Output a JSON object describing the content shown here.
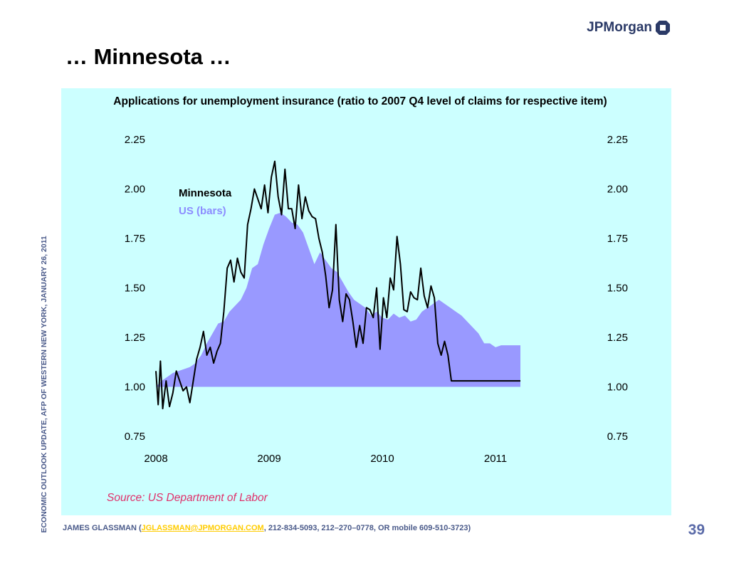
{
  "header": {
    "logo_text": "JPMorgan",
    "title": "… Minnesota …"
  },
  "side_label": "ECONOMIC OUTLOOK UPDATE, AFP OF WESTERN NEW YORK, JANUARY 26, 2011",
  "footer": {
    "author": "JAMES GLASSMAN (",
    "email": "JGLASSMAN@JPMORGAN.COM",
    "rest": ", 212-834-5093, 212–270–0778, OR mobile 609-510-3723)"
  },
  "page_number": "39",
  "source": "Source: US Department of Labor",
  "colors": {
    "panel": "#ccffff",
    "bars": "#9999ff",
    "line": "#000000",
    "source": "#e0306a"
  },
  "chart_data": {
    "type": "area",
    "title": "Applications for unemployment insurance (ratio to 2007 Q4 level of claims for respective item)",
    "ylim": [
      0.75,
      2.25
    ],
    "yticks_left": [
      "2.25",
      "2.00",
      "1.75",
      "1.50",
      "1.25",
      "1.00",
      "0.75"
    ],
    "yticks_right": [
      "2.25",
      "2.00",
      "1.75",
      "1.50",
      "1.25",
      "1.00",
      "0.75"
    ],
    "xlim": [
      2008.0,
      2011.22
    ],
    "xticks": [
      "2008",
      "2009",
      "2010",
      "2011"
    ],
    "legend": {
      "line": "Minnesota",
      "bars": "US (bars)"
    },
    "baseline": 1.0,
    "series": [
      {
        "name": "US (bars)",
        "kind": "area",
        "x": [
          2008.0,
          2008.05,
          2008.1,
          2008.15,
          2008.2,
          2008.25,
          2008.3,
          2008.35,
          2008.4,
          2008.45,
          2008.5,
          2008.55,
          2008.6,
          2008.65,
          2008.7,
          2008.75,
          2008.8,
          2008.85,
          2008.9,
          2008.95,
          2009.0,
          2009.05,
          2009.1,
          2009.15,
          2009.2,
          2009.25,
          2009.3,
          2009.35,
          2009.4,
          2009.45,
          2009.5,
          2009.55,
          2009.6,
          2009.65,
          2009.7,
          2009.75,
          2009.8,
          2009.85,
          2009.9,
          2009.95,
          2010.0,
          2010.05,
          2010.1,
          2010.15,
          2010.2,
          2010.25,
          2010.3,
          2010.35,
          2010.4,
          2010.45,
          2010.5,
          2010.55,
          2010.6,
          2010.65,
          2010.7,
          2010.75,
          2010.8,
          2010.85,
          2010.9,
          2010.95,
          2011.0,
          2011.05,
          2011.22
        ],
        "values": [
          1.0,
          1.03,
          1.05,
          1.07,
          1.08,
          1.09,
          1.1,
          1.12,
          1.16,
          1.22,
          1.27,
          1.32,
          1.33,
          1.38,
          1.41,
          1.44,
          1.5,
          1.6,
          1.62,
          1.72,
          1.8,
          1.87,
          1.88,
          1.86,
          1.83,
          1.82,
          1.78,
          1.7,
          1.62,
          1.68,
          1.64,
          1.6,
          1.58,
          1.53,
          1.48,
          1.44,
          1.42,
          1.4,
          1.36,
          1.38,
          1.35,
          1.34,
          1.37,
          1.35,
          1.36,
          1.33,
          1.34,
          1.38,
          1.4,
          1.42,
          1.44,
          1.42,
          1.4,
          1.38,
          1.36,
          1.33,
          1.3,
          1.27,
          1.22,
          1.22,
          1.2,
          1.21,
          1.21
        ]
      },
      {
        "name": "Minnesota",
        "kind": "line",
        "x": [
          2008.0,
          2008.02,
          2008.04,
          2008.06,
          2008.09,
          2008.12,
          2008.15,
          2008.18,
          2008.21,
          2008.24,
          2008.27,
          2008.3,
          2008.33,
          2008.36,
          2008.39,
          2008.42,
          2008.45,
          2008.48,
          2008.51,
          2008.54,
          2008.57,
          2008.6,
          2008.63,
          2008.66,
          2008.69,
          2008.72,
          2008.75,
          2008.78,
          2008.81,
          2008.84,
          2008.87,
          2008.9,
          2008.93,
          2008.96,
          2008.99,
          2009.02,
          2009.05,
          2009.08,
          2009.11,
          2009.14,
          2009.17,
          2009.2,
          2009.23,
          2009.26,
          2009.29,
          2009.32,
          2009.35,
          2009.38,
          2009.41,
          2009.44,
          2009.47,
          2009.5,
          2009.53,
          2009.56,
          2009.59,
          2009.62,
          2009.65,
          2009.68,
          2009.71,
          2009.74,
          2009.77,
          2009.8,
          2009.83,
          2009.86,
          2009.89,
          2009.92,
          2009.95,
          2009.98,
          2010.01,
          2010.04,
          2010.07,
          2010.1,
          2010.13,
          2010.16,
          2010.19,
          2010.22,
          2010.25,
          2010.28,
          2010.31,
          2010.34,
          2010.37,
          2010.4,
          2010.43,
          2010.46,
          2010.49,
          2010.52,
          2010.55,
          2010.58,
          2010.61,
          2010.64,
          2010.67,
          2010.7,
          2010.73,
          2010.76,
          2010.79,
          2010.82,
          2010.85,
          2010.88,
          2010.91,
          2010.94,
          2010.97,
          2011.0,
          2011.02,
          2011.04,
          2011.22
        ],
        "values": [
          1.08,
          0.91,
          1.13,
          0.89,
          1.03,
          0.9,
          0.97,
          1.08,
          1.03,
          0.98,
          1.0,
          0.92,
          1.03,
          1.14,
          1.2,
          1.28,
          1.16,
          1.2,
          1.12,
          1.18,
          1.22,
          1.38,
          1.6,
          1.64,
          1.53,
          1.65,
          1.58,
          1.55,
          1.82,
          1.9,
          2.0,
          1.95,
          1.9,
          2.02,
          1.88,
          2.06,
          2.14,
          1.96,
          1.87,
          2.1,
          1.9,
          1.9,
          1.8,
          2.02,
          1.85,
          1.96,
          1.89,
          1.86,
          1.85,
          1.75,
          1.68,
          1.56,
          1.4,
          1.49,
          1.82,
          1.44,
          1.33,
          1.47,
          1.44,
          1.33,
          1.2,
          1.31,
          1.22,
          1.4,
          1.39,
          1.35,
          1.5,
          1.19,
          1.45,
          1.35,
          1.55,
          1.49,
          1.76,
          1.62,
          1.39,
          1.38,
          1.48,
          1.45,
          1.44,
          1.6,
          1.46,
          1.4,
          1.51,
          1.45,
          1.22,
          1.16,
          1.23,
          1.16,
          1.03,
          1.03,
          1.03,
          1.03,
          1.03,
          1.03,
          1.03,
          1.03,
          1.03,
          1.03,
          1.03,
          1.03,
          1.03,
          1.03,
          1.03,
          1.03,
          1.03
        ]
      }
    ]
  }
}
